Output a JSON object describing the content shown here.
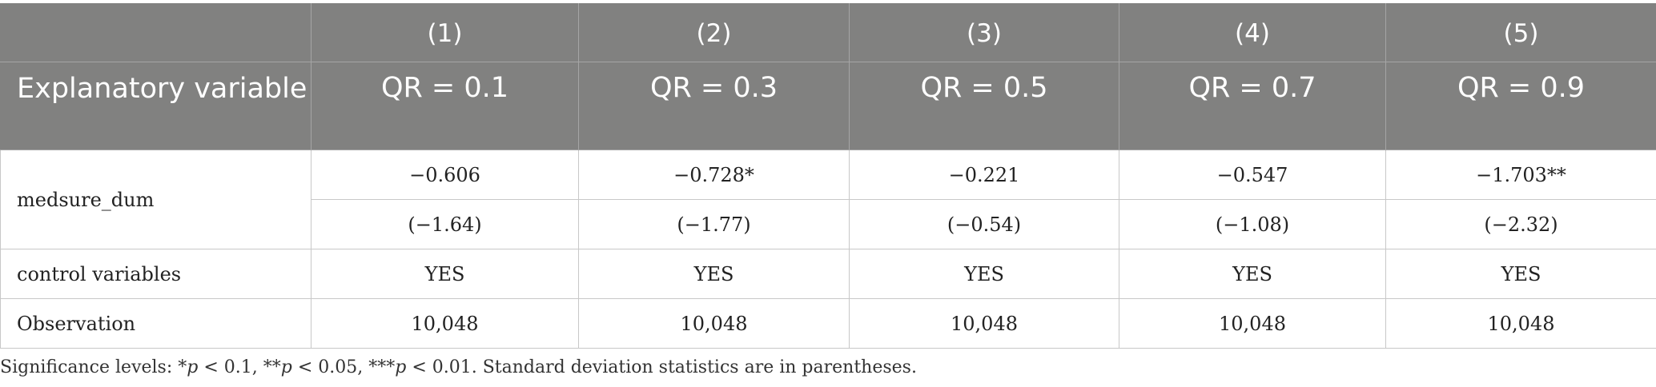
{
  "table": {
    "column_numbers": [
      "(1)",
      "(2)",
      "(3)",
      "(4)",
      "(5)"
    ],
    "header_label": "Explanatory variable",
    "quantiles": [
      "QR = 0.1",
      "QR = 0.3",
      "QR = 0.5",
      "QR = 0.7",
      "QR = 0.9"
    ],
    "rows": {
      "medsure": {
        "label": "medsure_dum",
        "coefficients": [
          "−0.606",
          "−0.728*",
          "−0.221",
          "−0.547",
          "−1.703**"
        ],
        "stats": [
          "(−1.64)",
          "(−1.77)",
          "(−0.54)",
          "(−1.08)",
          "(−2.32)"
        ]
      },
      "controls": {
        "label": "control variables",
        "values": [
          "YES",
          "YES",
          "YES",
          "YES",
          "YES"
        ]
      },
      "observation": {
        "label": "Observation",
        "values": [
          "10,048",
          "10,048",
          "10,048",
          "10,048",
          "10,048"
        ]
      }
    }
  },
  "footnote": {
    "prefix": "Significance levels: *",
    "p1": "p",
    "t1": " < 0.1, **",
    "p2": "p",
    "t2": " < 0.05, ***",
    "p3": "p",
    "t3": " < 0.01. Standard deviation statistics are in parentheses."
  },
  "colors": {
    "header_background": "#818180",
    "header_text": "#ffffff",
    "grid_line": "#c8c8c8"
  }
}
